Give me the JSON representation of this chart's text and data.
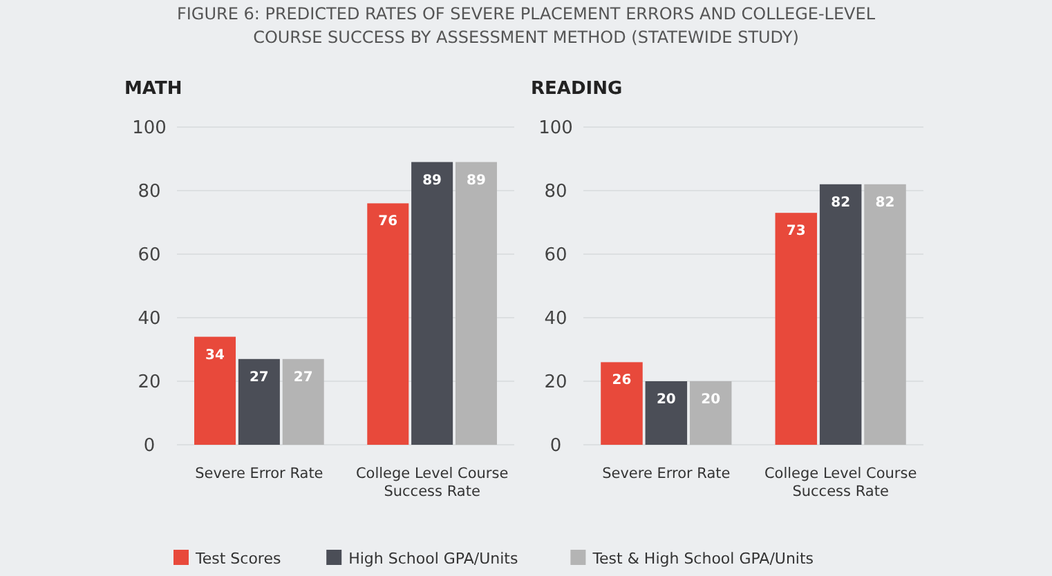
{
  "chart_data": [
    {
      "type": "bar",
      "title": "FIGURE 6: PREDICTED RATES OF SEVERE PLACEMENT ERRORS AND COLLEGE-LEVEL COURSE SUCCESS BY ASSESSMENT METHOD (STATEWIDE STUDY)",
      "subtitle": "MATH",
      "categories": [
        "Severe Error Rate",
        "College Level Course Success Rate"
      ],
      "series": [
        {
          "name": "Test Scores",
          "color": "#e8493b",
          "values": [
            34,
            76
          ]
        },
        {
          "name": "High School GPA/Units",
          "color": "#4b4e57",
          "values": [
            27,
            89
          ]
        },
        {
          "name": "Test & High School GPA/Units",
          "color": "#b4b4b4",
          "values": [
            27,
            89
          ]
        }
      ],
      "ylim": [
        0,
        100
      ],
      "yticks": [
        0,
        20,
        40,
        60,
        80,
        100
      ],
      "grid": "y",
      "data_labels": true,
      "legend": "bottom"
    },
    {
      "type": "bar",
      "subtitle": "READING",
      "categories": [
        "Severe Error Rate",
        "College Level Course Success Rate"
      ],
      "series": [
        {
          "color": "#e8493b",
          "values": [
            26,
            73
          ]
        },
        {
          "color": "#4b4e57",
          "values": [
            20,
            82
          ]
        },
        {
          "color": "#b4b4b4",
          "values": [
            20,
            82
          ]
        }
      ],
      "ylim": [
        0,
        100
      ],
      "yticks": [
        0,
        20,
        40,
        60,
        80,
        100
      ],
      "grid": "y",
      "data_labels": true
    }
  ]
}
